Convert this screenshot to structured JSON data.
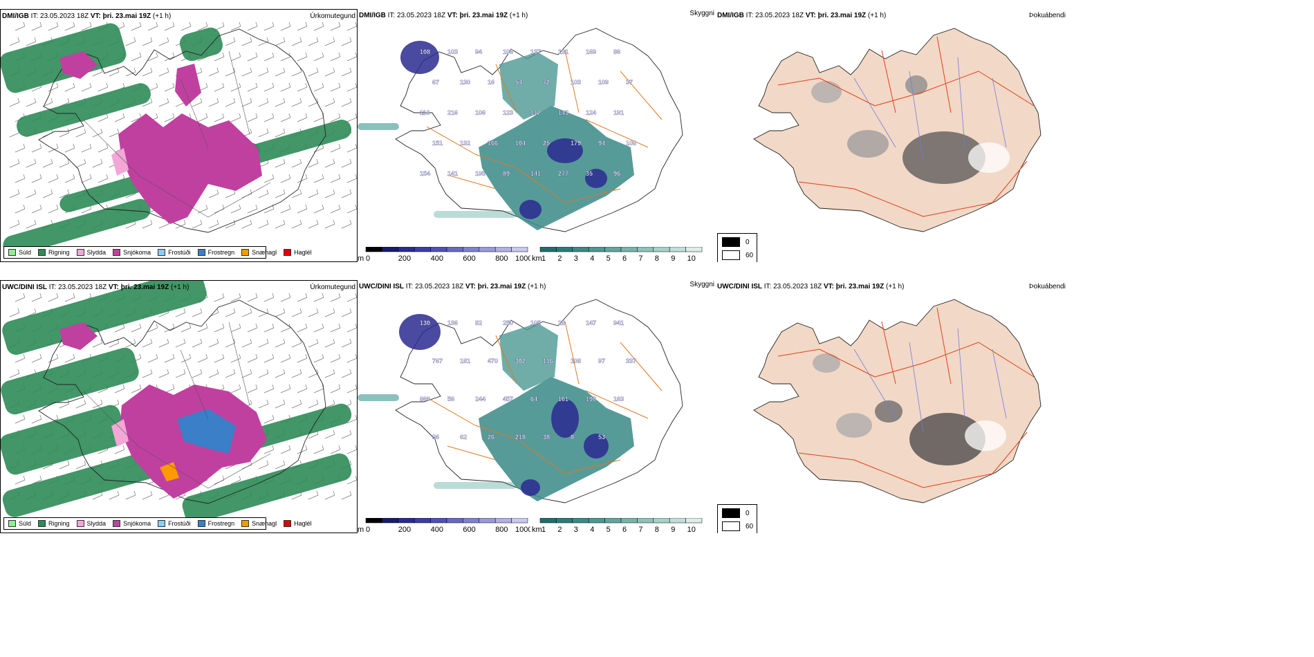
{
  "rows": [
    {
      "model": "DMI/IGB",
      "it_label": "IT:",
      "it_value": "23.05.2023 18Z",
      "vt_label": "VT:",
      "vt_value": "þri. 23.mai 19Z",
      "lead": "(+1 h)"
    },
    {
      "model": "UWC/DINI ISL",
      "it_label": "IT:",
      "it_value": "23.05.2023 18Z",
      "vt_label": "VT:",
      "vt_value": "þri. 23.mai 19Z",
      "lead": "(+1 h)"
    }
  ],
  "panel_titles": {
    "precip": "Úrkomutegund",
    "visibility": "Skyggni",
    "fog": "Þokuábendi"
  },
  "precip_legend": [
    {
      "label": "Súld",
      "color": "#90ee90"
    },
    {
      "label": "Rigning",
      "color": "#2e8b57"
    },
    {
      "label": "Slydda",
      "color": "#f4a6d7"
    },
    {
      "label": "Snjókoma",
      "color": "#c040a0"
    },
    {
      "label": "Frostúði",
      "color": "#87cefa"
    },
    {
      "label": "Frostregn",
      "color": "#3a7fc8"
    },
    {
      "label": "Snæhagl",
      "color": "#ff9900"
    },
    {
      "label": "Haglél",
      "color": "#e00000"
    }
  ],
  "ceiling_bar": {
    "unit": "m",
    "ticks": [
      "0",
      "200",
      "400",
      "600",
      "800",
      "1000"
    ],
    "colors": [
      "#000000",
      "#1a1a70",
      "#2a2a90",
      "#3c3ca8",
      "#5050b8",
      "#6868c4",
      "#8080d0",
      "#9898da",
      "#b0b0e4",
      "#c8c8ee"
    ]
  },
  "visibility_bar": {
    "unit": "km",
    "ticks": [
      "1",
      "2",
      "3",
      "4",
      "5",
      "6",
      "7",
      "8",
      "9",
      "10"
    ],
    "colors": [
      "#1f6e6e",
      "#2a7c7a",
      "#3a8a86",
      "#4c9892",
      "#60a69e",
      "#76b4ac",
      "#8ec2ba",
      "#a6d0c8",
      "#c0ded8",
      "#dcece8"
    ]
  },
  "fog_key": {
    "values": [
      "0",
      "60"
    ],
    "colors": [
      "#000000",
      "#ffffff"
    ]
  },
  "cloud_labels": {
    "row0": [
      "108",
      "103",
      "94",
      "106",
      "137",
      "131",
      "169",
      "86",
      "67",
      "130",
      "16",
      "54",
      "72",
      "103",
      "109",
      "37",
      "116",
      "216",
      "106",
      "123",
      "117",
      "143",
      "124",
      "191",
      "151",
      "132",
      "166",
      "104",
      "25",
      "179",
      "94",
      "108",
      "154",
      "141",
      "195",
      "89",
      "141",
      "277",
      "35",
      "96"
    ],
    "row1": [
      "130",
      "136",
      "82",
      "250",
      "105",
      "28",
      "147",
      "941",
      "767",
      "181",
      "470",
      "302",
      "116",
      "108",
      "97",
      "337",
      "860",
      "56",
      "244",
      "457",
      "64",
      "161",
      "198",
      "163",
      "96",
      "62",
      "26",
      "218",
      "38",
      "8",
      "53"
    ]
  }
}
